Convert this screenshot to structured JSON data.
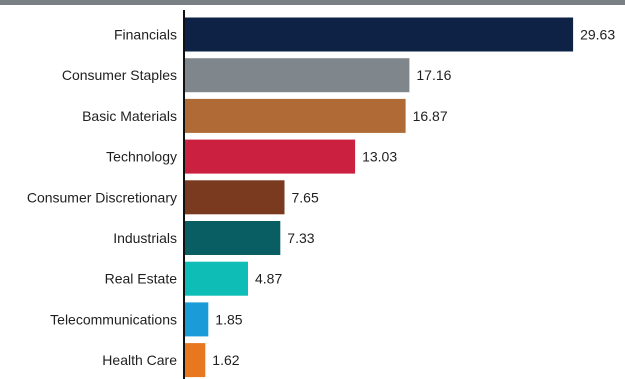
{
  "chart_data": {
    "type": "bar",
    "orientation": "horizontal",
    "title": "",
    "xlabel": "",
    "ylabel": "",
    "categories": [
      "Financials",
      "Consumer Staples",
      "Basic Materials",
      "Technology",
      "Consumer Discretionary",
      "Industrials",
      "Real Estate",
      "Telecommunications",
      "Health Care"
    ],
    "values": [
      29.63,
      17.16,
      16.87,
      13.03,
      7.65,
      7.33,
      4.87,
      1.85,
      1.62
    ],
    "value_labels": [
      "29.63",
      "17.16",
      "16.87",
      "13.03",
      "7.65",
      "7.33",
      "4.87",
      "1.85",
      "1.62"
    ],
    "colors": [
      "#0d2244",
      "#7f868c",
      "#b06a35",
      "#cc2040",
      "#7a3a1f",
      "#095e63",
      "#0dbdb6",
      "#1c9bd9",
      "#e87820"
    ],
    "xlim": [
      0,
      30
    ],
    "grid": false,
    "legend": "none"
  },
  "header_bar_color": "#7a7f85"
}
